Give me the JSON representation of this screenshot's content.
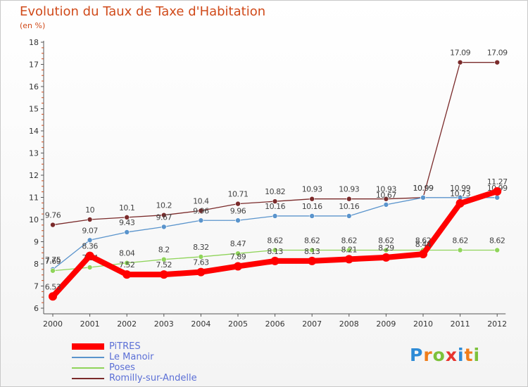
{
  "title": "Evolution du Taux de Taxe d'Habitation",
  "unit_label": "(en %)",
  "logo_text": "Proxiti",
  "logo_colors": [
    "#2e8bd6",
    "#f07d1a",
    "#7cc13a",
    "#e8342e",
    "#2e8bd6",
    "#f07d1a",
    "#7cc13a"
  ],
  "chart_data": {
    "type": "line",
    "categories": [
      "2000",
      "2001",
      "2002",
      "2003",
      "2004",
      "2005",
      "2006",
      "2007",
      "2008",
      "2009",
      "2010",
      "2011",
      "2012"
    ],
    "ylim": [
      6,
      18
    ],
    "yticks": [
      6,
      7,
      8,
      9,
      10,
      11,
      12,
      13,
      14,
      15,
      16,
      17,
      18
    ],
    "grid": false,
    "legend_position": "bottom-left",
    "series": [
      {
        "name": "Romilly-sur-Andelle",
        "color": "#7a2a2a",
        "line_width": "thin",
        "values": [
          9.76,
          10,
          10.1,
          10.2,
          10.4,
          10.71,
          10.82,
          10.93,
          10.93,
          10.93,
          10.99,
          17.09,
          17.09
        ],
        "labels": [
          "9.76",
          "10",
          "10.1",
          "10.2",
          "10.4",
          "10.71",
          "10.82",
          "10.93",
          "10.93",
          "10.93",
          "10.99",
          "17.09",
          "17.09"
        ]
      },
      {
        "name": "Le Manoir",
        "color": "#5a94cc",
        "line_width": "thin",
        "values": [
          7.75,
          9.07,
          9.43,
          9.67,
          9.96,
          9.96,
          10.16,
          10.16,
          10.16,
          10.67,
          10.99,
          10.99,
          10.99
        ],
        "labels": [
          "7.75",
          "9.07",
          "9.43",
          "9.67",
          "9.96",
          "9.96",
          "10.16",
          "10.16",
          "10.16",
          "10.67",
          "10.99",
          "10.99",
          "10.99"
        ]
      },
      {
        "name": "Poses",
        "color": "#8fd45a",
        "line_width": "thin",
        "values": [
          7.69,
          7.84,
          8.04,
          8.2,
          8.32,
          8.47,
          8.62,
          8.62,
          8.62,
          8.62,
          8.62,
          8.62,
          8.62
        ],
        "labels": [
          "7.69",
          "7.84",
          "8.04",
          "8.2",
          "8.32",
          "8.47",
          "8.62",
          "8.62",
          "8.62",
          "8.62",
          "8.62",
          "8.62",
          "8.62"
        ]
      },
      {
        "name": "PiTRES",
        "color": "#ff0000",
        "line_width": "thick",
        "values": [
          6.53,
          8.36,
          7.52,
          7.52,
          7.63,
          7.89,
          8.13,
          8.13,
          8.21,
          8.29,
          8.44,
          10.73,
          11.27
        ],
        "labels": [
          "6.53",
          "8.36",
          "7.52",
          "7.52",
          "7.63",
          "7.89",
          "8.13",
          "8.13",
          "8.21",
          "8.29",
          "8.44",
          "10.73",
          "11.27"
        ]
      }
    ],
    "legend_order": [
      "PiTRES",
      "Le Manoir",
      "Poses",
      "Romilly-sur-Andelle"
    ]
  }
}
